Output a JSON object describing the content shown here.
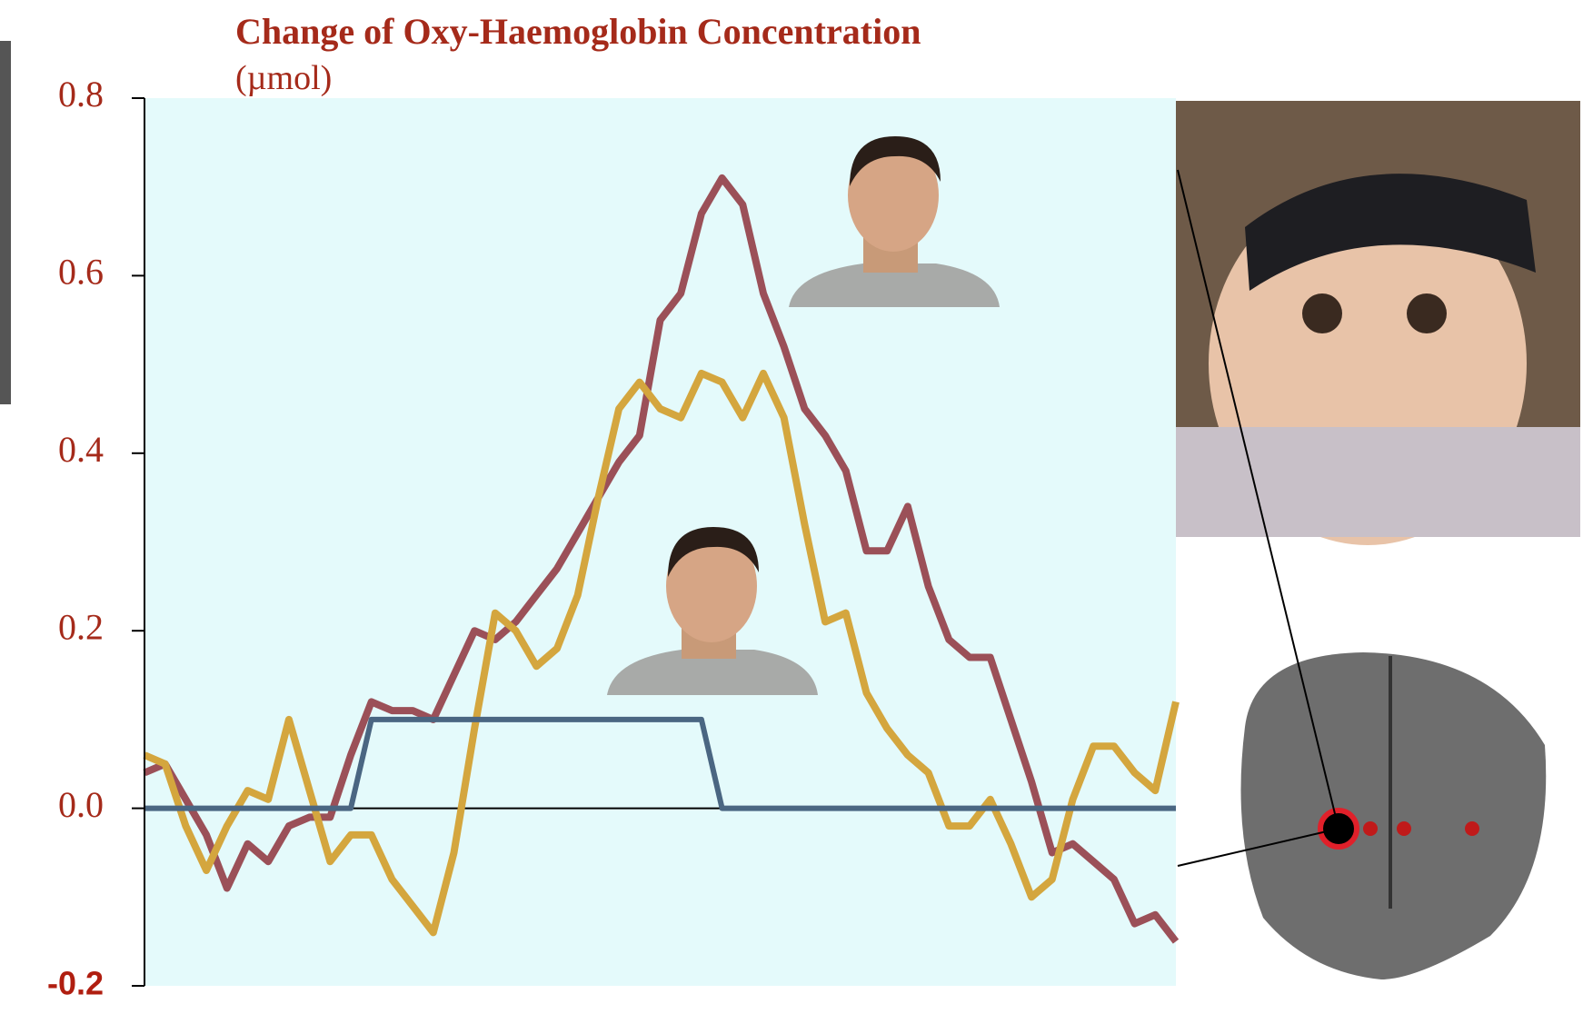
{
  "chart_data": {
    "type": "line",
    "title": "Change of Oxy-Haemoglobin Concentration",
    "subtitle": "(µmol)",
    "ylim": [
      -0.2,
      0.8
    ],
    "yticks": [
      0.8,
      0.6,
      0.4,
      0.2,
      {
        "value": 0,
        "label": "0.0"
      },
      -0.2
    ],
    "series": [
      {
        "color": "#9b5058",
        "values": [
          0.04,
          0.05,
          0.01,
          -0.03,
          -0.09,
          -0.04,
          -0.06,
          -0.02,
          -0.01,
          -0.01,
          0.06,
          0.12,
          0.11,
          0.11,
          0.1,
          0.15,
          0.2,
          0.19,
          0.21,
          0.24,
          0.27,
          0.31,
          0.35,
          0.39,
          0.42,
          0.55,
          0.58,
          0.67,
          0.71,
          0.68,
          0.58,
          0.52,
          0.45,
          0.42,
          0.38,
          0.29,
          0.29,
          0.34,
          0.25,
          0.19,
          0.17,
          0.17,
          0.1,
          0.03,
          -0.05,
          -0.04,
          -0.06,
          -0.08,
          -0.13,
          -0.12,
          -0.15
        ]
      },
      {
        "color": "#d4a63e",
        "values": [
          0.06,
          0.05,
          -0.02,
          -0.07,
          -0.02,
          0.02,
          0.01,
          0.1,
          0.02,
          -0.06,
          -0.03,
          -0.03,
          -0.08,
          -0.11,
          -0.14,
          -0.05,
          0.09,
          0.22,
          0.2,
          0.16,
          0.18,
          0.24,
          0.35,
          0.45,
          0.48,
          0.45,
          0.44,
          0.49,
          0.48,
          0.44,
          0.49,
          0.44,
          0.32,
          0.21,
          0.22,
          0.13,
          0.09,
          0.06,
          0.04,
          -0.02,
          -0.02,
          0.01,
          -0.04,
          -0.1,
          -0.08,
          0.01,
          0.07,
          0.07,
          0.04,
          0.02,
          0.12
        ]
      },
      {
        "color": "#4a6682",
        "values": [
          0,
          0,
          0,
          0,
          0,
          0,
          0,
          0,
          0,
          0,
          0,
          0.1,
          0.1,
          0.1,
          0.1,
          0.1,
          0.1,
          0.1,
          0.1,
          0.1,
          0.1,
          0.1,
          0.1,
          0.1,
          0.1,
          0.1,
          0.1,
          0.1,
          0,
          0,
          0,
          0,
          0,
          0,
          0,
          0,
          0,
          0,
          0,
          0,
          0,
          0,
          0,
          0,
          0,
          0,
          0,
          0,
          0,
          0,
          0
        ]
      }
    ]
  }
}
